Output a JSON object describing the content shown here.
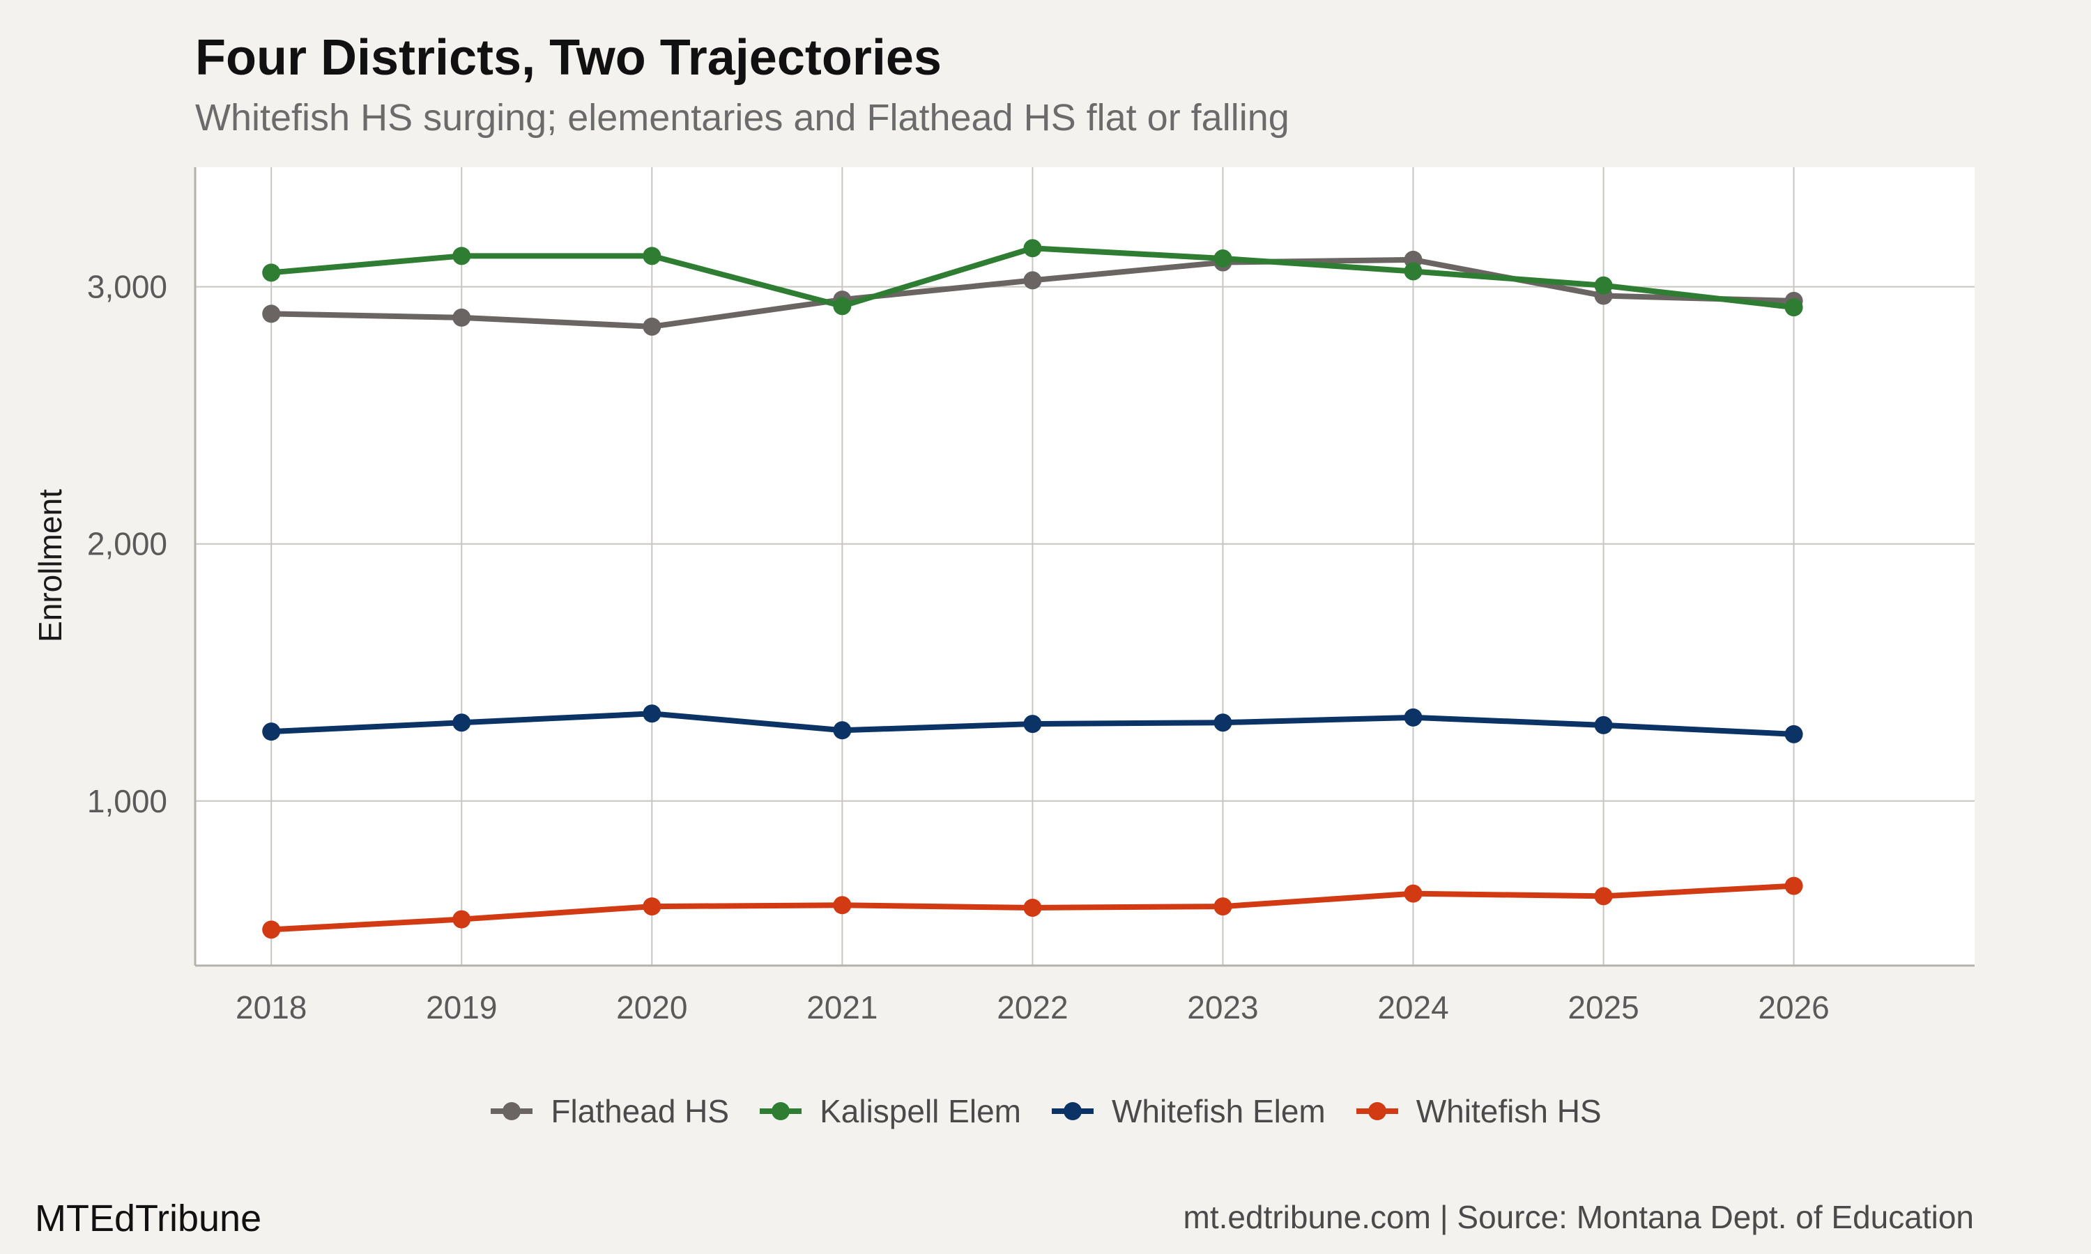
{
  "header": {
    "title": "Four Districts, Two Trajectories",
    "subtitle": "Whitefish HS surging; elementaries and Flathead HS flat or falling"
  },
  "footer": {
    "brand": "MTEdTribune",
    "source": "mt.edtribune.com | Source: Montana Dept. of Education"
  },
  "colors": {
    "background": "#f4f2ee",
    "panel": "#ffffff",
    "grid": "#c9c6c0",
    "Flathead HS": "#6a6563",
    "Kalispell Elem": "#2e7d32",
    "Whitefish Elem": "#0b3366",
    "Whitefish HS": "#d13a12"
  },
  "chart_data": {
    "type": "line",
    "title": "Four Districts, Two Trajectories",
    "subtitle": "Whitefish HS surging; elementaries and Flathead HS flat or falling",
    "xlabel": "",
    "ylabel": "Enrollment",
    "x": [
      2018,
      2019,
      2020,
      2021,
      2022,
      2023,
      2024,
      2025,
      2026
    ],
    "x_ticks": [
      "2018",
      "2019",
      "2020",
      "2021",
      "2022",
      "2023",
      "2024",
      "2025",
      "2026"
    ],
    "xlim": [
      2017.6,
      2026.95
    ],
    "y_ticks": [
      1000,
      2000,
      3000
    ],
    "y_tick_labels": [
      "1,000",
      "2,000",
      "3,000"
    ],
    "ylim": [
      360,
      3465
    ],
    "grid": true,
    "legend_position": "bottom",
    "series": [
      {
        "name": "Flathead HS",
        "values": [
          2895,
          2880,
          2845,
          2950,
          3025,
          3095,
          3105,
          2965,
          2945
        ]
      },
      {
        "name": "Kalispell Elem",
        "values": [
          3055,
          3120,
          3120,
          2925,
          3150,
          3110,
          3060,
          3005,
          2920
        ]
      },
      {
        "name": "Whitefish Elem",
        "values": [
          1270,
          1305,
          1340,
          1275,
          1300,
          1305,
          1325,
          1295,
          1260
        ]
      },
      {
        "name": "Whitefish HS",
        "values": [
          500,
          540,
          590,
          595,
          585,
          590,
          640,
          630,
          670
        ]
      }
    ]
  }
}
